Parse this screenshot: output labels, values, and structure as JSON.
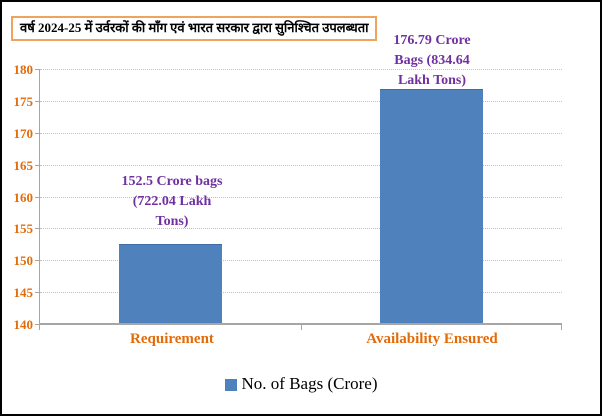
{
  "title": "वर्ष 2024-25 में उर्वरकों की माँग एवं भारत सरकार द्वारा सुनिश्चित उपलब्धता",
  "chart_data": {
    "type": "bar",
    "title": "वर्ष 2024-25 में उर्वरकों की माँग एवं भारत सरकार द्वारा सुनिश्चित उपलब्धता",
    "categories": [
      "Requirement",
      "Availability Ensured"
    ],
    "series": [
      {
        "name": "No. of Bags (Crore)",
        "values": [
          152.5,
          176.79
        ]
      }
    ],
    "data_labels": [
      [
        "152.5 Crore bags",
        "(722.04 Lakh",
        "Tons)"
      ],
      [
        "176.79 Crore",
        "Bags (834.64",
        "Lakh Tons)"
      ]
    ],
    "ylim": [
      140,
      180
    ],
    "yticks": [
      140,
      145,
      150,
      155,
      160,
      165,
      170,
      175,
      180
    ],
    "grid": true,
    "legend": {
      "position": "bottom",
      "entries": [
        "No. of Bags (Crore)"
      ]
    },
    "colors": {
      "bar": "#4F81BD",
      "data_label": "#7030A0",
      "axis_label": "#E36C0A",
      "category_label": "#E36C0A",
      "gridline": "#BFBFBF",
      "axis_line": "#A6A6A6",
      "title_border": "#F0A35C",
      "title_text": "#000000",
      "legend_text": "#000000",
      "background": "#FFFFFF",
      "border": "#000000"
    }
  }
}
